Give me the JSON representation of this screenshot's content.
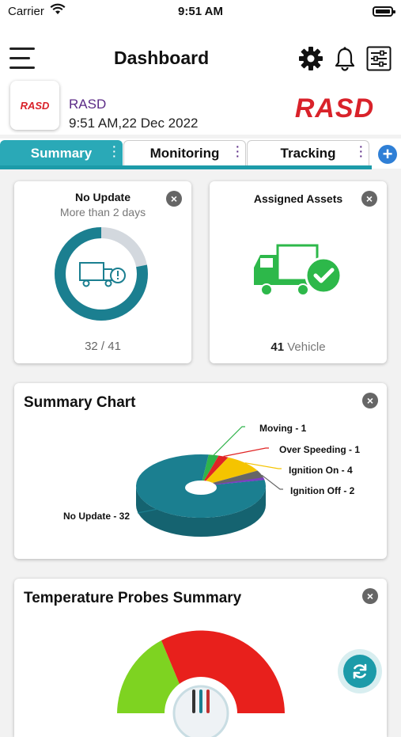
{
  "status_bar": {
    "carrier": "Carrier",
    "time": "9:51 AM"
  },
  "header": {
    "title": "Dashboard",
    "company_name": "RASD",
    "company_time": "9:51 AM,22 Dec 2022",
    "logo_text": "RASD",
    "brand_text": "RASD"
  },
  "tabs": [
    {
      "label": "Summary",
      "active": true
    },
    {
      "label": "Monitoring",
      "active": false
    },
    {
      "label": "Tracking",
      "active": false
    }
  ],
  "no_update_card": {
    "title": "No Update",
    "subtitle": "More than 2 days",
    "count": "32 / 41",
    "value": 32,
    "total": 41
  },
  "assigned_card": {
    "title": "Assigned Assets",
    "count": "41",
    "unit": "Vehicle"
  },
  "summary_chart": {
    "title": "Summary Chart"
  },
  "chart_data": {
    "type": "pie",
    "labels": [
      "Moving - 1",
      "Over Speeding - 1",
      "Ignition On - 4",
      "Ignition Off - 2",
      "No Update - 32"
    ],
    "categories": [
      "Moving",
      "Over Speeding",
      "Ignition On",
      "Ignition Off",
      "No Update"
    ],
    "values": [
      1,
      1,
      4,
      2,
      32
    ],
    "colors": [
      "#2fb34a",
      "#e02424",
      "#f5c400",
      "#666666",
      "#1b7f90"
    ],
    "extra_colors": {
      "purple": "#7b3fc4"
    },
    "legend": "none"
  },
  "temperature_card": {
    "title": "Temperature Probes Summary",
    "colors": {
      "green": "#7ed321",
      "red": "#e8201c"
    }
  },
  "colors": {
    "accent": "#1c9ba9",
    "brand_purple": "#5b2a86",
    "brand_red": "#d9222a"
  },
  "icons": [
    "menu-icon",
    "gear-icon",
    "bell-icon",
    "filter-icon",
    "close-icon",
    "truck-icon",
    "refresh-icon",
    "plus-icon"
  ]
}
